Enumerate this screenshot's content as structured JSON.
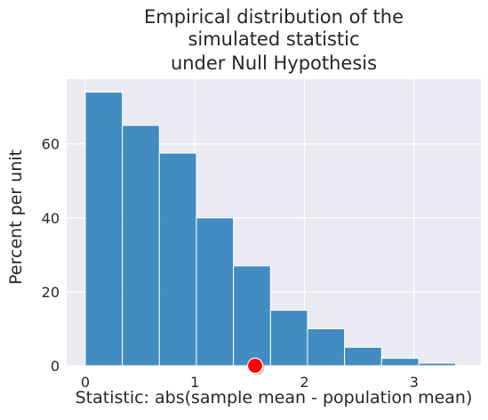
{
  "chart_data": {
    "type": "bar",
    "title": [
      "Empirical distribution of the",
      "simulated statistic",
      "under Null Hypothesis"
    ],
    "xlabel": "Statistic: abs(sample mean - population mean)",
    "ylabel": "Percent per unit",
    "xlim": [
      -0.17,
      3.61
    ],
    "ylim": [
      0,
      77.5
    ],
    "xticks": [
      0,
      1,
      2,
      3
    ],
    "yticks": [
      0,
      20,
      40,
      60
    ],
    "grid": true,
    "bin_edges": [
      0.0,
      0.338,
      0.676,
      1.014,
      1.352,
      1.69,
      2.028,
      2.366,
      2.704,
      3.042,
      3.38
    ],
    "values": [
      74,
      65,
      57.5,
      40,
      27,
      15,
      10,
      5,
      2,
      0.7
    ],
    "bar_color": "#3182bd",
    "background_color": "#eaeaf2",
    "observed_statistic": {
      "x": 1.55,
      "y": 0,
      "color": "#ff0000"
    }
  }
}
